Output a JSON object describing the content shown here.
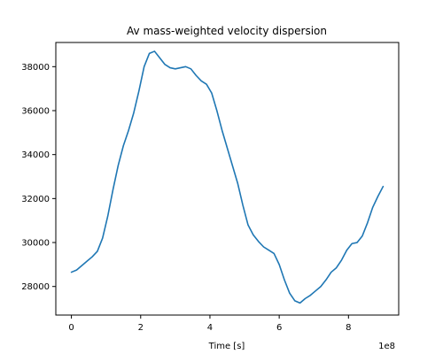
{
  "chart_data": {
    "type": "line",
    "title": "Av mass-weighted velocity dispersion",
    "xlabel": "Time [s]",
    "ylabel": "",
    "x_offset_label": "1e8",
    "xlim": [
      -0.45,
      9.45
    ],
    "ylim": [
      26700,
      39100
    ],
    "x_ticks": [
      0,
      2,
      4,
      6,
      8
    ],
    "x_tick_labels": [
      "0",
      "2",
      "4",
      "6",
      "8"
    ],
    "y_ticks": [
      28000,
      30000,
      32000,
      34000,
      36000,
      38000
    ],
    "y_tick_labels": [
      "28000",
      "30000",
      "32000",
      "34000",
      "36000",
      "38000"
    ],
    "grid": false,
    "series": [
      {
        "color": "#1f77b4",
        "x": [
          0,
          0.15,
          0.3,
          0.45,
          0.6,
          0.75,
          0.9,
          1.05,
          1.2,
          1.35,
          1.5,
          1.65,
          1.8,
          1.95,
          2.1,
          2.25,
          2.4,
          2.55,
          2.7,
          2.85,
          3.0,
          3.15,
          3.3,
          3.45,
          3.6,
          3.75,
          3.9,
          4.05,
          4.2,
          4.35,
          4.5,
          4.65,
          4.8,
          4.95,
          5.1,
          5.25,
          5.4,
          5.55,
          5.7,
          5.85,
          6.0,
          6.15,
          6.3,
          6.45,
          6.6,
          6.75,
          6.9,
          7.05,
          7.2,
          7.35,
          7.5,
          7.65,
          7.8,
          7.95,
          8.1,
          8.25,
          8.4,
          8.55,
          8.7,
          8.85,
          9.0
        ],
        "y": [
          28650,
          28750,
          28950,
          29150,
          29350,
          29600,
          30200,
          31200,
          32400,
          33500,
          34400,
          35100,
          35900,
          36900,
          38000,
          38600,
          38700,
          38400,
          38100,
          37950,
          37900,
          37950,
          38000,
          37900,
          37600,
          37350,
          37200,
          36800,
          36000,
          35100,
          34300,
          33500,
          32700,
          31700,
          30800,
          30350,
          30050,
          29800,
          29650,
          29500,
          29000,
          28300,
          27700,
          27350,
          27250,
          27450,
          27600,
          27800,
          28000,
          28300,
          28650,
          28850,
          29200,
          29650,
          29950,
          30000,
          30300,
          30900,
          31600,
          32100,
          32550
        ]
      }
    ]
  }
}
